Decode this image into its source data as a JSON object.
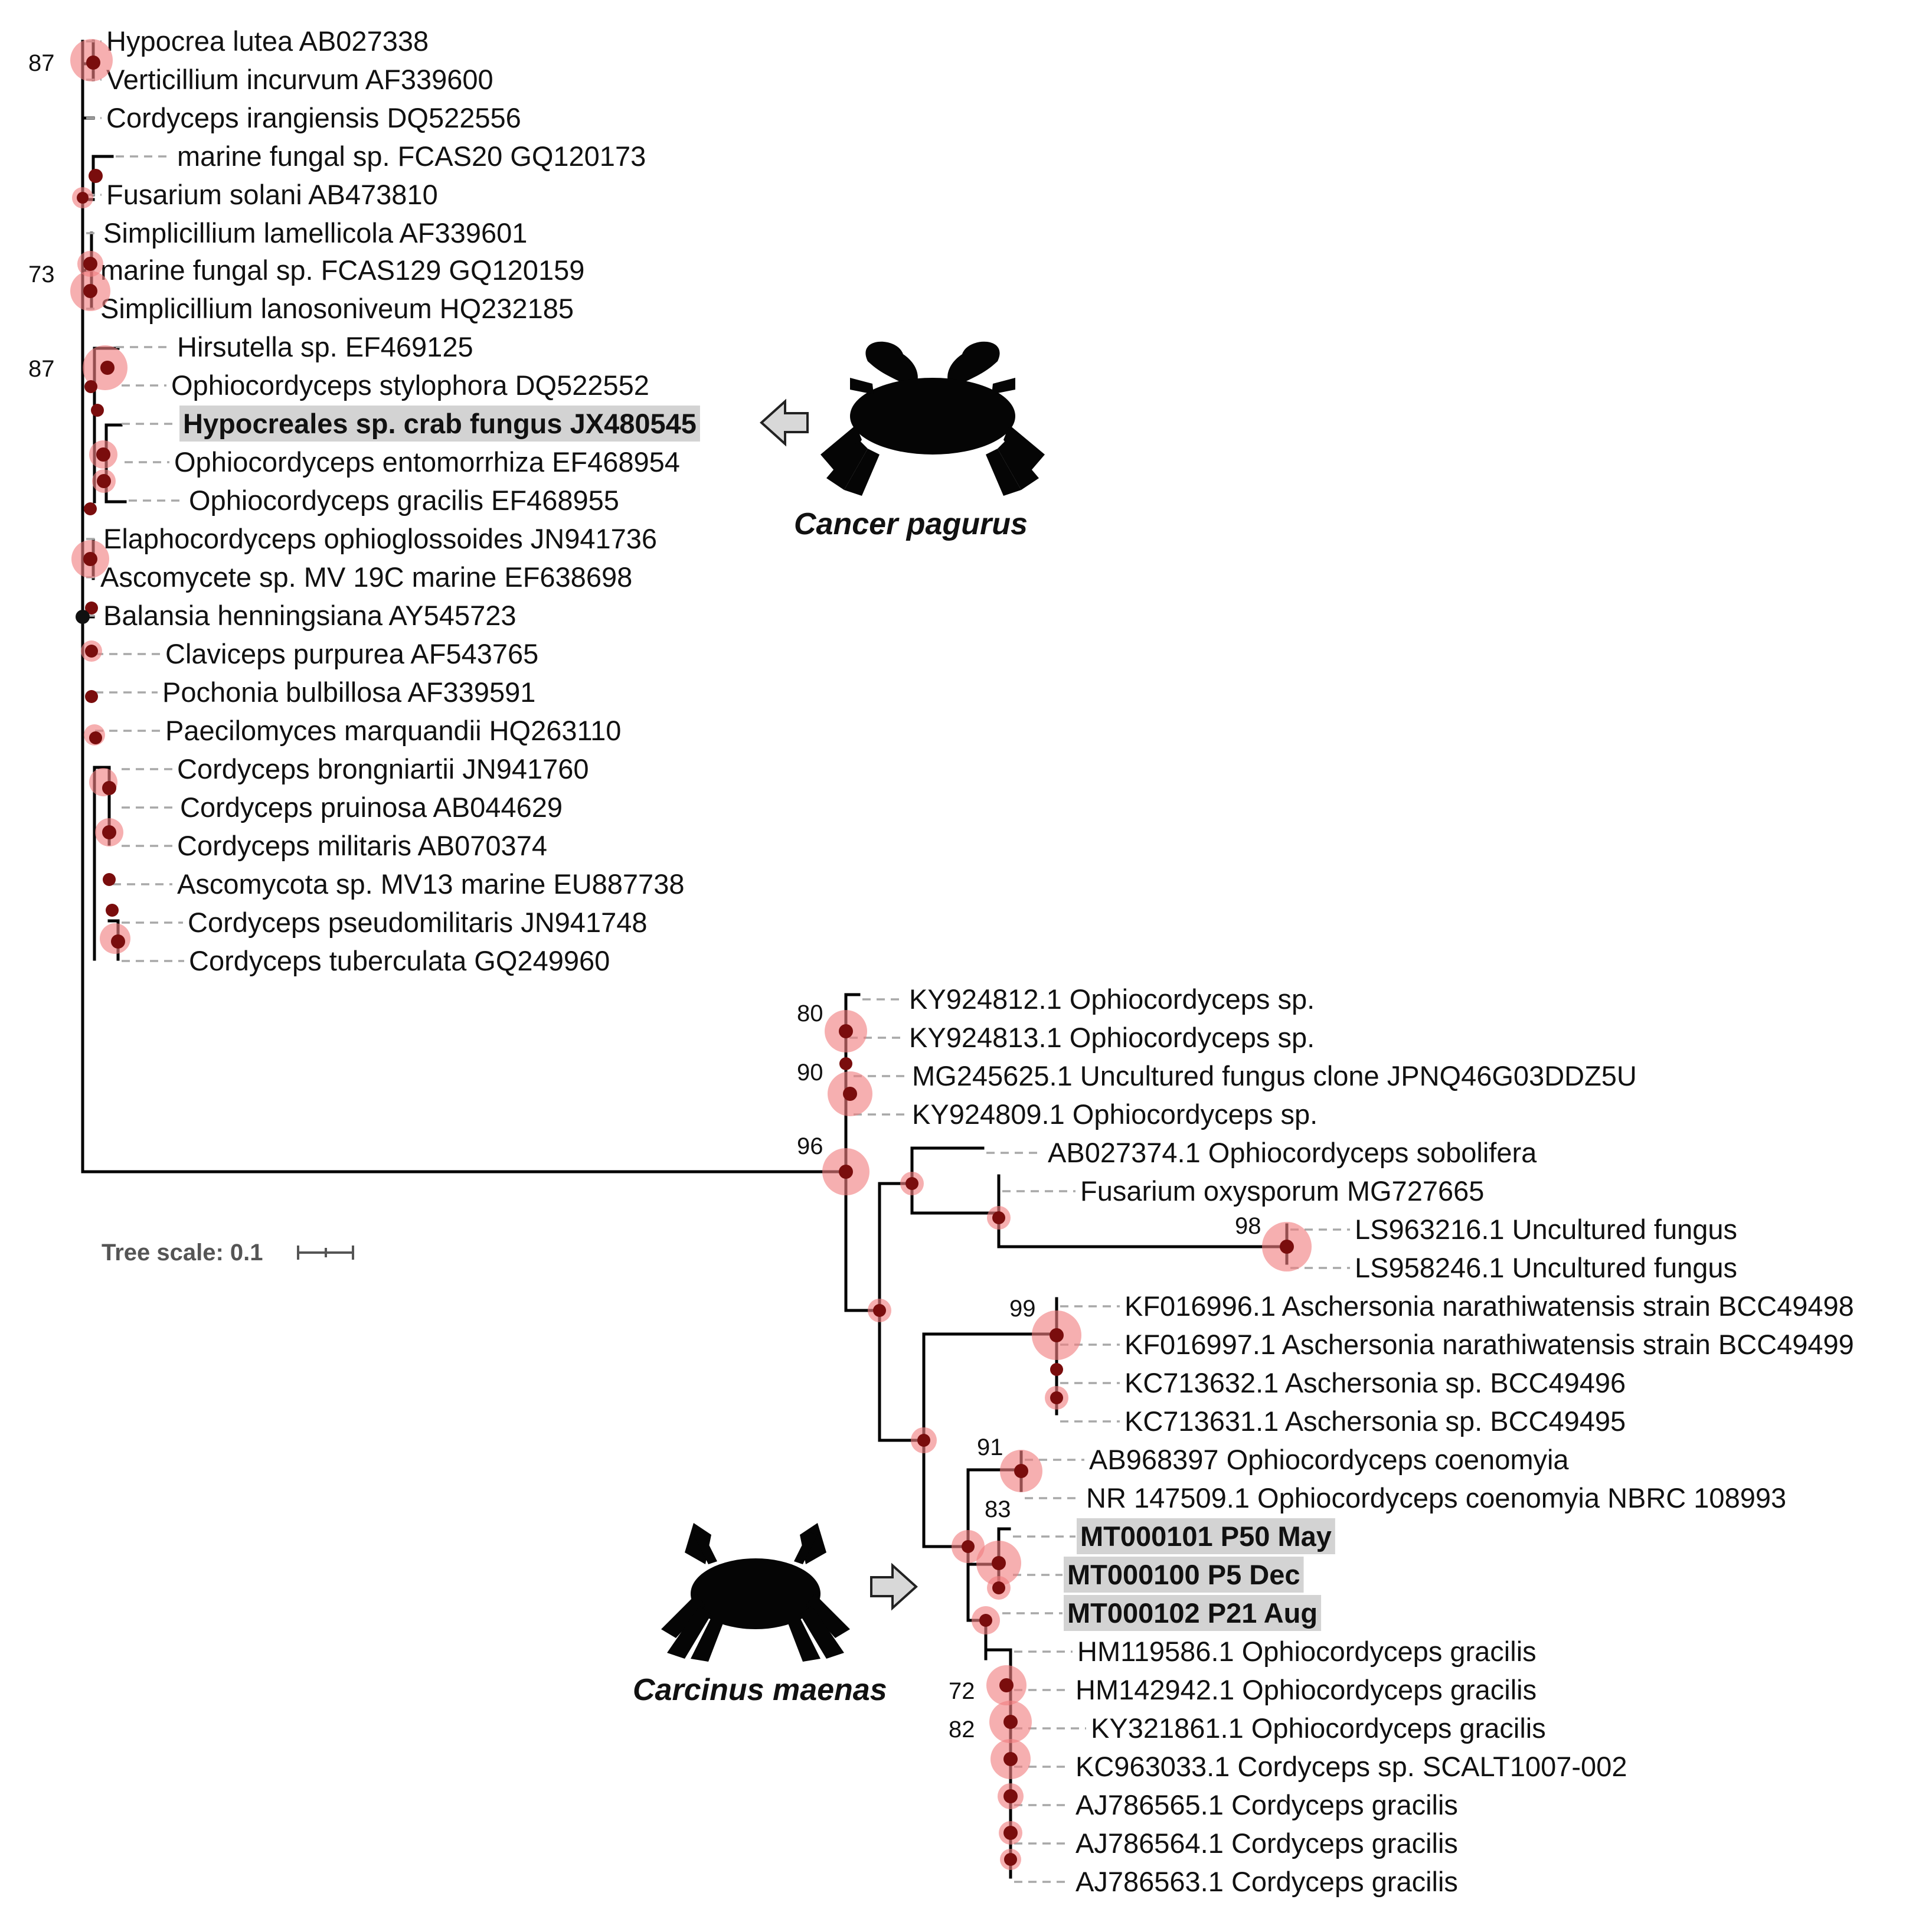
{
  "figure": {
    "type": "phylogenetic-tree",
    "scale_bar": {
      "label": "Tree scale: 0.1",
      "value": 0.1
    }
  },
  "colors": {
    "support_halo": "#f17e80",
    "node_dot": "#7a0d0d",
    "highlight": "#d3d3d3",
    "branch": "#000000",
    "leader": "#a8a8a8"
  },
  "leaves": [
    "Hypocrea lutea AB027338",
    "Verticillium incurvum AF339600",
    "Cordyceps irangiensis DQ522556",
    "marine fungal sp. FCAS20 GQ120173",
    "Fusarium solani AB473810",
    "Simplicillium lamellicola AF339601",
    "marine fungal sp. FCAS129 GQ120159",
    "Simplicillium lanosoniveum HQ232185",
    "Hirsutella sp. EF469125",
    "Ophiocordyceps stylophora DQ522552",
    "Hypocreales sp. crab fungus JX480545",
    "Ophiocordyceps entomorrhiza EF468954",
    "Ophiocordyceps gracilis EF468955",
    "Elaphocordyceps ophioglossoides JN941736",
    "Ascomycete sp. MV 19C marine EF638698",
    "Balansia henningsiana AY545723",
    "Claviceps purpurea AF543765",
    "Pochonia bulbillosa AF339591",
    "Paecilomyces marquandii HQ263110",
    "Cordyceps brongniartii JN941760",
    "Cordyceps pruinosa AB044629",
    "Cordyceps militaris AB070374",
    "Ascomycota sp. MV13 marine EU887738",
    "Cordyceps pseudomilitaris JN941748",
    "Cordyceps tuberculata GQ249960",
    "KY924812.1 Ophiocordyceps sp.",
    "KY924813.1 Ophiocordyceps sp.",
    "MG245625.1 Uncultured fungus clone JPNQ46G03DDZ5U",
    "KY924809.1 Ophiocordyceps sp.",
    "AB027374.1 Ophiocordyceps sobolifera",
    "Fusarium oxysporum MG727665",
    "LS963216.1 Uncultured fungus",
    "LS958246.1 Uncultured fungus",
    "KF016996.1 Aschersonia narathiwatensis strain BCC49498",
    "KF016997.1 Aschersonia narathiwatensis strain BCC49499",
    "KC713632.1 Aschersonia sp. BCC49496",
    "KC713631.1 Aschersonia sp. BCC49495",
    "AB968397 Ophiocordyceps coenomyia",
    "NR 147509.1 Ophiocordyceps coenomyia NBRC 108993",
    "MT000101 P50 May",
    "MT000100 P5 Dec",
    "MT000102 P21 Aug",
    "HM119586.1 Ophiocordyceps gracilis",
    "HM142942.1 Ophiocordyceps gracilis",
    "KY321861.1 Ophiocordyceps gracilis",
    "KC963033.1 Cordyceps sp. SCALT1007-002",
    "AJ786565.1 Cordyceps gracilis",
    "AJ786564.1 Cordyceps gracilis",
    "AJ786563.1 Cordyceps gracilis"
  ],
  "bold_leaves": [
    10,
    39,
    40,
    41
  ],
  "bootstrap": [
    "87",
    "73",
    "87",
    "80",
    "90",
    "96",
    "98",
    "99",
    "91",
    "83",
    "72",
    "82"
  ],
  "hosts": [
    {
      "name": "Cancer pagurus",
      "points_to": "Hypocreales sp. crab fungus JX480545"
    },
    {
      "name": "Carcinus maenas",
      "points_to": "MT000100 P5 Dec"
    }
  ]
}
